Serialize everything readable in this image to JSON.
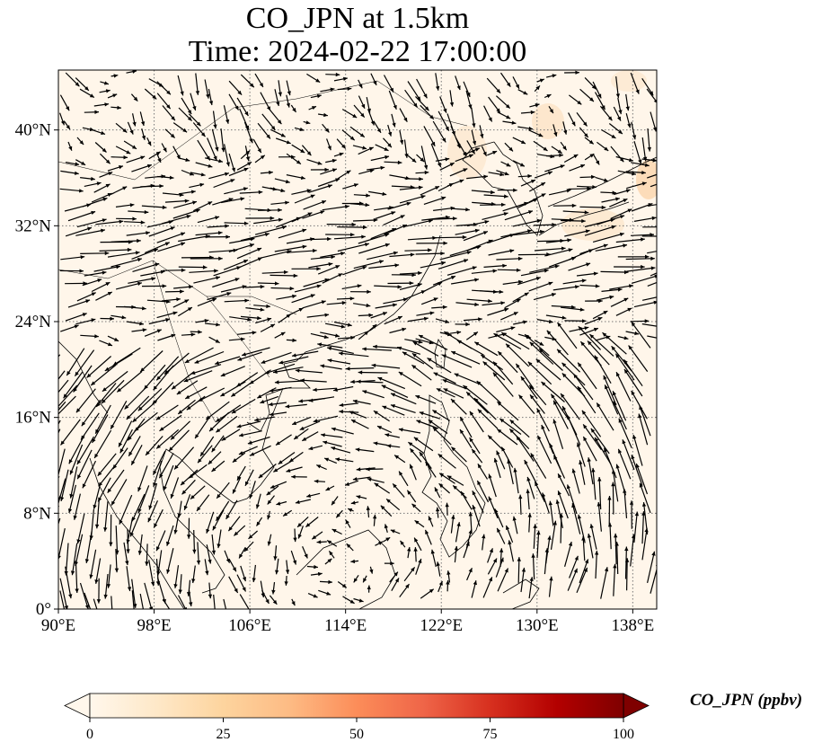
{
  "title": {
    "line1": "CO_JPN at 1.5km",
    "line2": "Time: 2024-02-22 17:00:00"
  },
  "map": {
    "lon_range": [
      90,
      140
    ],
    "lat_range": [
      0,
      45
    ],
    "x_ticks": [
      {
        "value": 90,
        "label": "90°E"
      },
      {
        "value": 98,
        "label": "98°E"
      },
      {
        "value": 106,
        "label": "106°E"
      },
      {
        "value": 114,
        "label": "114°E"
      },
      {
        "value": 122,
        "label": "122°E"
      },
      {
        "value": 130,
        "label": "130°E"
      },
      {
        "value": 138,
        "label": "138°E"
      }
    ],
    "y_ticks": [
      {
        "value": 0,
        "label": "0°"
      },
      {
        "value": 8,
        "label": "8°N"
      },
      {
        "value": 16,
        "label": "16°N"
      },
      {
        "value": 24,
        "label": "24°N"
      },
      {
        "value": 32,
        "label": "32°N"
      },
      {
        "value": 40,
        "label": "40°N"
      }
    ],
    "gridlines": "dotted",
    "background_color": "#fff6ea",
    "coastline_color": "#000000",
    "vector_color": "#000000"
  },
  "colorbar": {
    "label": "CO_JPN (ppbv)",
    "min": 0,
    "max": 100,
    "colormap": "OrRd",
    "extend": "both",
    "ticks": [
      {
        "value": 0,
        "label": "0"
      },
      {
        "value": 25,
        "label": "25"
      },
      {
        "value": 50,
        "label": "50"
      },
      {
        "value": 75,
        "label": "75"
      },
      {
        "value": 100,
        "label": "100"
      }
    ],
    "stops": [
      "#fff7ec",
      "#fee8c8",
      "#fdd49e",
      "#fdbb84",
      "#fc8d59",
      "#ef6548",
      "#d7301f",
      "#b30000",
      "#7f0000"
    ]
  }
}
